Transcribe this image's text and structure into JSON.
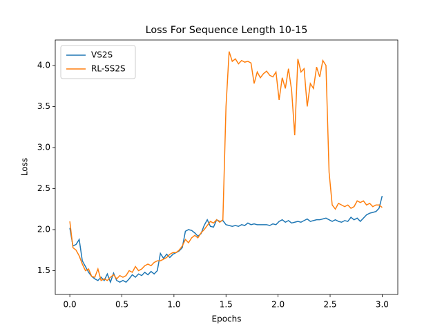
{
  "chart_data": {
    "type": "line",
    "title": "Loss For Sequence Length 10-15",
    "x_label": "Epochs",
    "y_label": "Loss",
    "x": [
      0.0,
      0.03,
      0.06,
      0.09,
      0.12,
      0.15,
      0.18,
      0.21,
      0.24,
      0.27,
      0.3,
      0.33,
      0.36,
      0.39,
      0.42,
      0.45,
      0.48,
      0.51,
      0.54,
      0.57,
      0.6,
      0.63,
      0.66,
      0.69,
      0.72,
      0.75,
      0.78,
      0.81,
      0.84,
      0.87,
      0.9,
      0.93,
      0.96,
      0.99,
      1.02,
      1.05,
      1.08,
      1.11,
      1.14,
      1.17,
      1.2,
      1.23,
      1.26,
      1.29,
      1.32,
      1.35,
      1.38,
      1.41,
      1.44,
      1.47,
      1.5,
      1.53,
      1.56,
      1.59,
      1.62,
      1.65,
      1.68,
      1.71,
      1.74,
      1.77,
      1.8,
      1.83,
      1.86,
      1.89,
      1.92,
      1.95,
      1.98,
      2.01,
      2.04,
      2.07,
      2.1,
      2.13,
      2.16,
      2.19,
      2.22,
      2.25,
      2.28,
      2.31,
      2.34,
      2.37,
      2.4,
      2.43,
      2.46,
      2.49,
      2.52,
      2.55,
      2.58,
      2.61,
      2.64,
      2.67,
      2.7,
      2.73,
      2.76,
      2.79,
      2.82,
      2.85,
      2.88,
      2.91,
      2.94,
      2.97,
      3.0
    ],
    "series": [
      {
        "name": "VS2S",
        "color": "#1f77b4",
        "values": [
          2.02,
          1.8,
          1.82,
          1.88,
          1.62,
          1.55,
          1.48,
          1.43,
          1.4,
          1.38,
          1.42,
          1.38,
          1.46,
          1.36,
          1.47,
          1.38,
          1.36,
          1.38,
          1.36,
          1.4,
          1.45,
          1.42,
          1.46,
          1.44,
          1.48,
          1.45,
          1.49,
          1.46,
          1.5,
          1.71,
          1.65,
          1.7,
          1.66,
          1.7,
          1.72,
          1.74,
          1.78,
          1.98,
          2.0,
          1.99,
          1.96,
          1.92,
          1.95,
          2.05,
          2.12,
          2.04,
          2.03,
          2.12,
          2.1,
          2.11,
          2.06,
          2.05,
          2.04,
          2.05,
          2.04,
          2.06,
          2.05,
          2.08,
          2.06,
          2.07,
          2.06,
          2.06,
          2.06,
          2.06,
          2.05,
          2.07,
          2.06,
          2.1,
          2.12,
          2.09,
          2.11,
          2.08,
          2.09,
          2.1,
          2.09,
          2.11,
          2.13,
          2.1,
          2.11,
          2.12,
          2.12,
          2.13,
          2.14,
          2.12,
          2.1,
          2.12,
          2.1,
          2.09,
          2.11,
          2.1,
          2.15,
          2.12,
          2.14,
          2.1,
          2.14,
          2.18,
          2.2,
          2.21,
          2.22,
          2.26,
          2.41
        ]
      },
      {
        "name": "RL-SS2S",
        "color": "#ff7f0e",
        "values": [
          2.1,
          1.78,
          1.75,
          1.68,
          1.58,
          1.5,
          1.52,
          1.43,
          1.42,
          1.52,
          1.38,
          1.4,
          1.38,
          1.42,
          1.45,
          1.4,
          1.44,
          1.42,
          1.44,
          1.5,
          1.48,
          1.55,
          1.5,
          1.52,
          1.56,
          1.58,
          1.56,
          1.6,
          1.62,
          1.62,
          1.64,
          1.66,
          1.7,
          1.72,
          1.72,
          1.75,
          1.8,
          1.88,
          1.84,
          1.9,
          1.93,
          1.9,
          1.96,
          2.0,
          2.05,
          2.1,
          2.08,
          2.12,
          2.09,
          2.12,
          3.5,
          4.17,
          4.05,
          4.08,
          4.02,
          4.06,
          4.04,
          4.05,
          4.03,
          3.78,
          3.92,
          3.85,
          3.9,
          3.93,
          3.88,
          3.86,
          3.92,
          3.58,
          3.85,
          3.72,
          3.96,
          3.7,
          3.15,
          4.08,
          3.92,
          3.96,
          3.5,
          3.78,
          3.72,
          3.98,
          3.86,
          4.06,
          4.0,
          2.7,
          2.3,
          2.25,
          2.32,
          2.3,
          2.28,
          2.3,
          2.26,
          2.28,
          2.35,
          2.33,
          2.35,
          2.3,
          2.32,
          2.28,
          2.3,
          2.3,
          2.27
        ]
      }
    ],
    "xlim": [
      -0.14,
      3.15
    ],
    "ylim": [
      1.21,
      4.31
    ],
    "xticks": [
      {
        "value": 0,
        "label": "0.0"
      },
      0.5,
      {
        "value": 1,
        "label": "1.0"
      },
      1.5,
      {
        "value": 2,
        "label": "2.0"
      },
      2.5,
      {
        "value": 3,
        "label": "3.0"
      }
    ],
    "yticks": [
      1.5,
      {
        "value": 2,
        "label": "2.0"
      },
      2.5,
      {
        "value": 3,
        "label": "3.0"
      },
      3.5,
      {
        "value": 4,
        "label": "4.0"
      }
    ],
    "legend": "upper left"
  }
}
